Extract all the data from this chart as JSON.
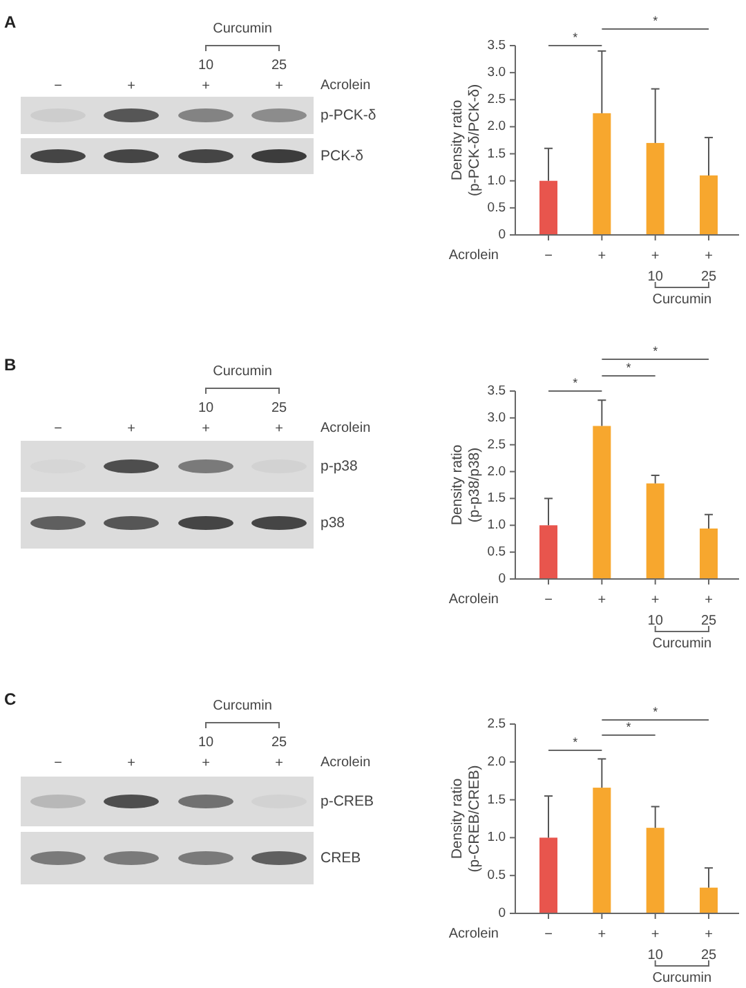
{
  "chart_data": [
    {
      "type": "other",
      "title": "A",
      "categories": [
        "−",
        "+",
        "10\n+",
        "25\n+"
      ],
      "xlabel": "Acrolein",
      "y_categories": [
        "p-PCK-δ",
        "PCK-δ"
      ],
      "annotations": [
        "Curcumin"
      ]
    },
    {
      "type": "bar",
      "categories": [
        "−",
        "+",
        "+\n10",
        "+\n25"
      ],
      "values": [
        1.0,
        2.25,
        1.7,
        1.1
      ],
      "colors": [
        "#e8554d",
        "#f7a72e",
        "#f7a72e",
        "#f7a72e"
      ],
      "errors": [
        [
          1.0,
          1.6
        ],
        [
          2.25,
          3.4
        ],
        [
          1.7,
          2.7
        ],
        [
          1.1,
          1.8
        ]
      ],
      "ylim": [
        0,
        3.5
      ],
      "yticks": [
        0,
        0.5,
        {
          "value": 1,
          "label": "1.0"
        },
        1.5,
        {
          "value": 2,
          "label": "2.0"
        },
        2.5,
        {
          "value": 3,
          "label": "3.0"
        },
        3.5
      ],
      "xlabel": "Acrolein",
      "ylabel": "Density ratio\n(p-PCK-δ/PCK-δ)",
      "annotations": [
        "*",
        "*",
        "Curcumin"
      ]
    },
    {
      "type": "other",
      "title": "B",
      "categories": [
        "−",
        "+",
        "10\n+",
        "25\n+"
      ],
      "xlabel": "Acrolein",
      "y_categories": [
        "p-p38",
        "p38"
      ],
      "annotations": [
        "Curcumin"
      ]
    },
    {
      "type": "bar",
      "categories": [
        "−",
        "+",
        "+\n10",
        "+\n25"
      ],
      "values": [
        1.0,
        2.85,
        1.78,
        0.94
      ],
      "colors": [
        "#e8554d",
        "#f7a72e",
        "#f7a72e",
        "#f7a72e"
      ],
      "errors": [
        [
          1.0,
          1.5
        ],
        [
          2.85,
          3.33
        ],
        [
          1.78,
          1.93
        ],
        [
          0.94,
          1.2
        ]
      ],
      "ylim": [
        0,
        3.5
      ],
      "yticks": [
        0,
        0.5,
        {
          "value": 1,
          "label": "1.0"
        },
        1.5,
        {
          "value": 2,
          "label": "2.0"
        },
        2.5,
        {
          "value": 3,
          "label": "3.0"
        },
        3.5
      ],
      "xlabel": "Acrolein",
      "ylabel": "Density ratio\n(p-p38/p38)",
      "annotations": [
        "*",
        "*",
        "*",
        "Curcumin"
      ]
    },
    {
      "type": "other",
      "title": "C",
      "categories": [
        "−",
        "+",
        "10\n+",
        "25\n+"
      ],
      "xlabel": "Acrolein",
      "y_categories": [
        "p-CREB",
        "CREB"
      ],
      "annotations": [
        "Curcumin"
      ]
    },
    {
      "type": "bar",
      "categories": [
        "−",
        "+",
        "+\n10",
        "+\n25"
      ],
      "values": [
        1.0,
        1.66,
        1.13,
        0.34
      ],
      "colors": [
        "#e8554d",
        "#f7a72e",
        "#f7a72e",
        "#f7a72e"
      ],
      "errors": [
        [
          1.0,
          1.55
        ],
        [
          1.66,
          2.04
        ],
        [
          1.13,
          1.41
        ],
        [
          0.34,
          0.6
        ]
      ],
      "ylim": [
        0,
        2.5
      ],
      "yticks": [
        0,
        0.5,
        {
          "value": 1,
          "label": "1.0"
        },
        1.5,
        {
          "value": 2,
          "label": "2.0"
        },
        2.5
      ],
      "xlabel": "Acrolein",
      "ylabel": "Density ratio\n(p-CREB/CREB)",
      "annotations": [
        "*",
        "*",
        "*",
        "Curcumin"
      ]
    }
  ]
}
